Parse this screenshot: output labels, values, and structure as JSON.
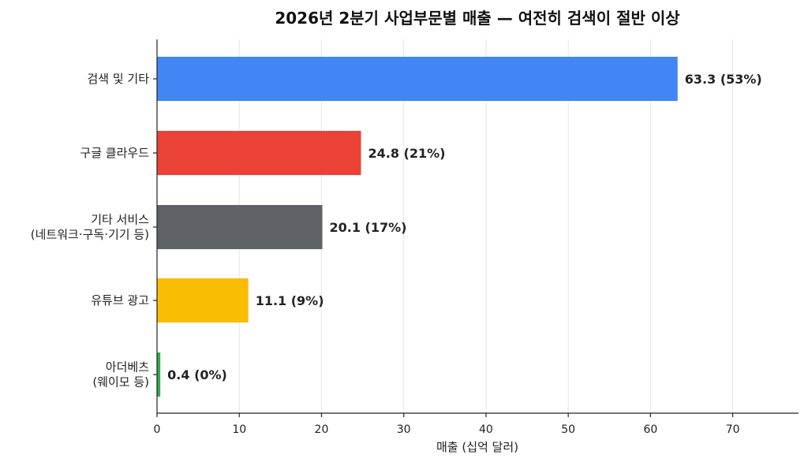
{
  "chart_data": {
    "type": "bar",
    "orientation": "horizontal",
    "title": "2026년 2분기 사업부문별 매출 — 여전히 검색이 절반 이상",
    "xlabel": "매출 (십억 달러)",
    "ylabel": "",
    "xlim": [
      0,
      78
    ],
    "xticks": [
      0,
      10,
      20,
      30,
      40,
      50,
      60,
      70
    ],
    "grid": "vertical",
    "legend": "none",
    "bars": [
      {
        "category": [
          "검색 및 기타"
        ],
        "value": 63.3,
        "label": "63.3 (53%)",
        "color": "#4285F4"
      },
      {
        "category": [
          "구글 클라우드"
        ],
        "value": 24.8,
        "label": "24.8 (21%)",
        "color": "#EA4335"
      },
      {
        "category": [
          "기타 서비스",
          "(네트워크·구독·기기 등)"
        ],
        "value": 20.1,
        "label": "20.1 (17%)",
        "color": "#5F6368"
      },
      {
        "category": [
          "유튜브 광고"
        ],
        "value": 11.1,
        "label": "11.1 (9%)",
        "color": "#FBBC04"
      },
      {
        "category": [
          "아더베츠",
          "(웨이모 등)"
        ],
        "value": 0.4,
        "label": "0.4 (0%)",
        "color": "#34A853"
      }
    ]
  }
}
